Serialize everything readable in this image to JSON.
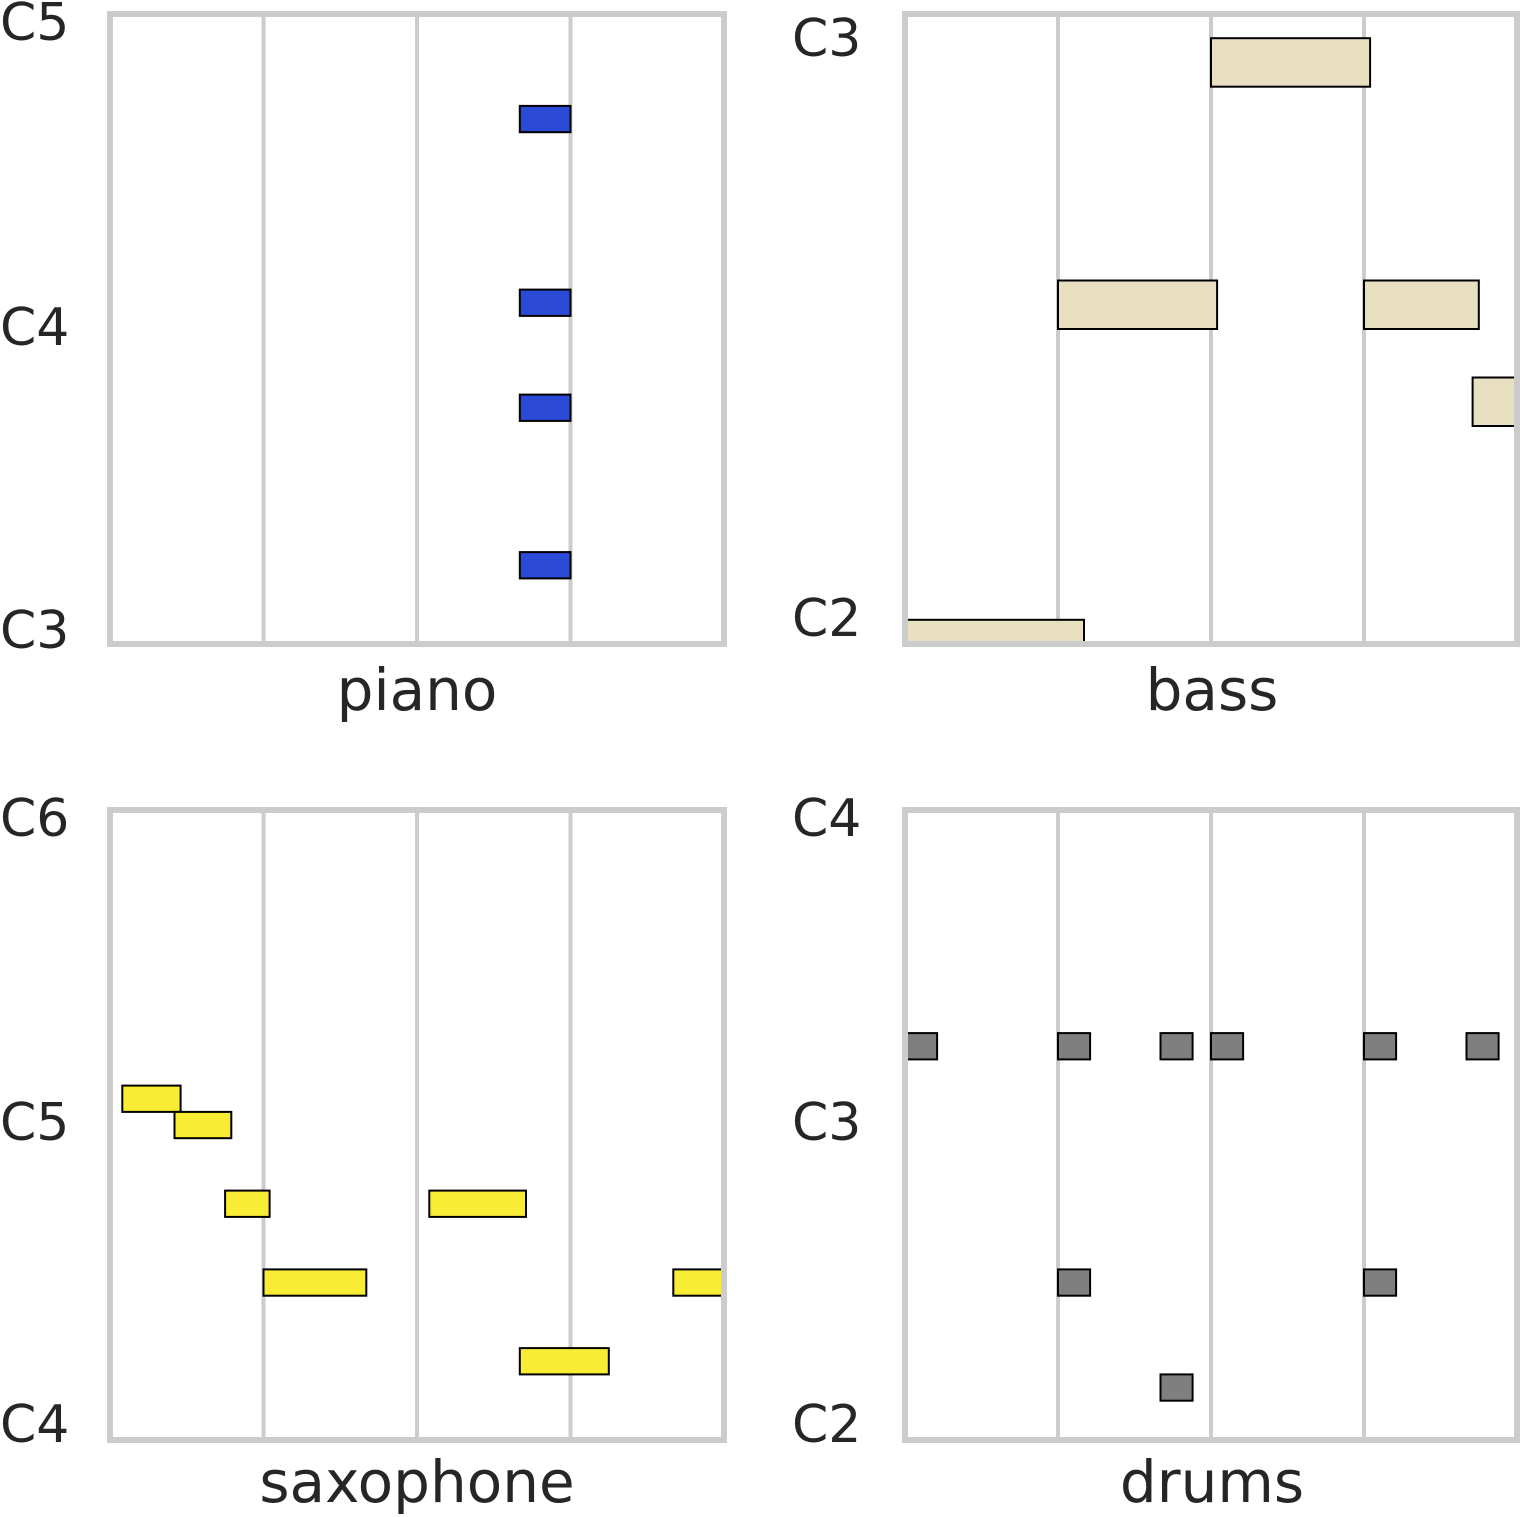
{
  "chart_data": [
    {
      "type": "piano-roll",
      "xlabel": "piano",
      "ytick_labels": [
        "C5",
        "C4",
        "C3"
      ],
      "pitch_range": [
        48,
        72
      ],
      "time_range": [
        0,
        4
      ],
      "beat_grid": [
        1,
        2,
        3
      ],
      "note_color": "#2b4ad6",
      "notes": [
        {
          "pitch": 68,
          "start": 2.67,
          "end": 3.0
        },
        {
          "pitch": 61,
          "start": 2.67,
          "end": 3.0
        },
        {
          "pitch": 57,
          "start": 2.67,
          "end": 3.0
        },
        {
          "pitch": 51,
          "start": 2.67,
          "end": 3.0
        }
      ]
    },
    {
      "type": "piano-roll",
      "xlabel": "bass",
      "ytick_labels": [
        "C3",
        "C2"
      ],
      "pitch_range": [
        36,
        49
      ],
      "time_range": [
        0,
        4
      ],
      "beat_grid": [
        1,
        2,
        3
      ],
      "note_color": "#e8dfc0",
      "notes": [
        {
          "pitch": 48,
          "start": 2.0,
          "end": 3.04
        },
        {
          "pitch": 43,
          "start": 1.0,
          "end": 2.04
        },
        {
          "pitch": 43,
          "start": 3.0,
          "end": 3.75
        },
        {
          "pitch": 41,
          "start": 3.71,
          "end": 4.0
        },
        {
          "pitch": 36,
          "start": 0.0,
          "end": 1.17
        }
      ]
    },
    {
      "type": "piano-roll",
      "xlabel": "saxophone",
      "ytick_labels": [
        "C6",
        "C5",
        "C4"
      ],
      "pitch_range": [
        60,
        84
      ],
      "time_range": [
        0,
        4
      ],
      "beat_grid": [
        1,
        2,
        3
      ],
      "note_color": "#f9ec35",
      "notes": [
        {
          "pitch": 73,
          "start": 0.08,
          "end": 0.46
        },
        {
          "pitch": 72,
          "start": 0.42,
          "end": 0.79
        },
        {
          "pitch": 69,
          "start": 0.75,
          "end": 1.04
        },
        {
          "pitch": 69,
          "start": 2.08,
          "end": 2.71
        },
        {
          "pitch": 66,
          "start": 1.0,
          "end": 1.67
        },
        {
          "pitch": 66,
          "start": 3.67,
          "end": 4.0
        },
        {
          "pitch": 63,
          "start": 2.67,
          "end": 3.25
        }
      ]
    },
    {
      "type": "piano-roll",
      "xlabel": "drums",
      "ytick_labels": [
        "C4",
        "C3",
        "C2"
      ],
      "pitch_range": [
        36,
        60
      ],
      "time_range": [
        0,
        4
      ],
      "beat_grid": [
        1,
        2,
        3
      ],
      "note_color": "#7f7f7f",
      "notes": [
        {
          "pitch": 51,
          "start": 0.0,
          "end": 0.21
        },
        {
          "pitch": 51,
          "start": 1.0,
          "end": 1.21
        },
        {
          "pitch": 51,
          "start": 1.67,
          "end": 1.88
        },
        {
          "pitch": 51,
          "start": 2.0,
          "end": 2.21
        },
        {
          "pitch": 51,
          "start": 3.0,
          "end": 3.21
        },
        {
          "pitch": 51,
          "start": 3.67,
          "end": 3.88
        },
        {
          "pitch": 42,
          "start": 1.0,
          "end": 1.21
        },
        {
          "pitch": 42,
          "start": 3.0,
          "end": 3.21
        },
        {
          "pitch": 38,
          "start": 1.67,
          "end": 1.88
        }
      ]
    }
  ]
}
